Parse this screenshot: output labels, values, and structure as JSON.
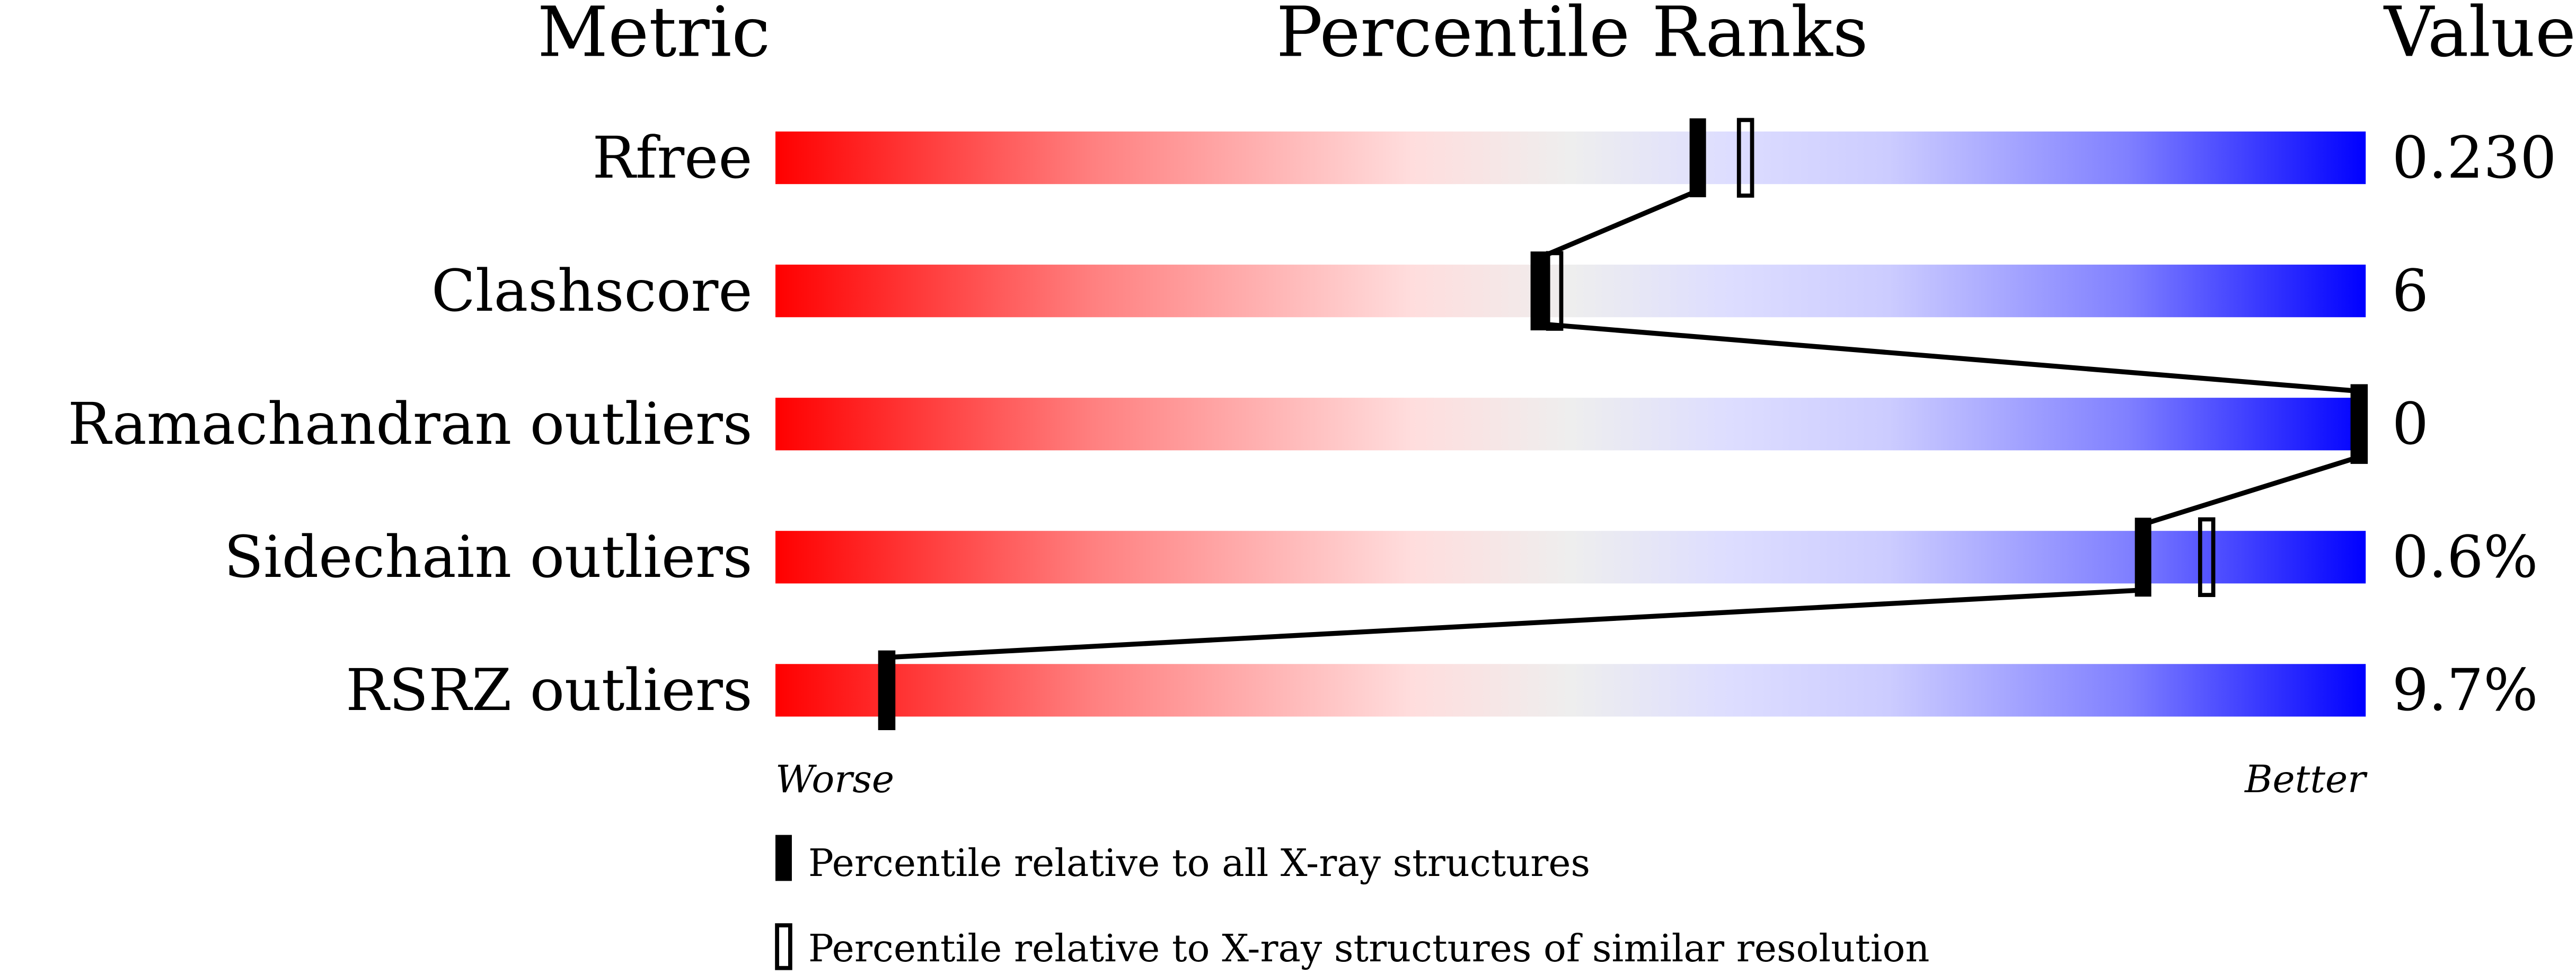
{
  "chart_data": {
    "type": "bar",
    "headers": {
      "metric": "Metric",
      "ranks": "Percentile Ranks",
      "value": "Value"
    },
    "xlim": [
      0,
      100
    ],
    "axis_labels": {
      "left": "Worse",
      "right": "Better"
    },
    "gradient_colors": [
      "#ff0000",
      "#ffdddd",
      "#eeeeee",
      "#ddddff",
      "#0000ff"
    ],
    "rows": [
      {
        "metric": "Rfree",
        "value": "0.230",
        "percentile_all": 58,
        "percentile_similar": 61
      },
      {
        "metric": "Clashscore",
        "value": "6",
        "percentile_all": 48,
        "percentile_similar": 49
      },
      {
        "metric": "Ramachandran outliers",
        "value": "0",
        "percentile_all": 100,
        "percentile_similar": 100
      },
      {
        "metric": "Sidechain outliers",
        "value": "0.6%",
        "percentile_all": 86,
        "percentile_similar": 90
      },
      {
        "metric": "RSRZ outliers",
        "value": "9.7%",
        "percentile_all": 7,
        "percentile_similar": 7
      }
    ],
    "legend": [
      {
        "marker": "filled",
        "label": "Percentile relative to all X-ray structures"
      },
      {
        "marker": "open",
        "label": "Percentile relative to X-ray structures of similar resolution"
      }
    ]
  }
}
